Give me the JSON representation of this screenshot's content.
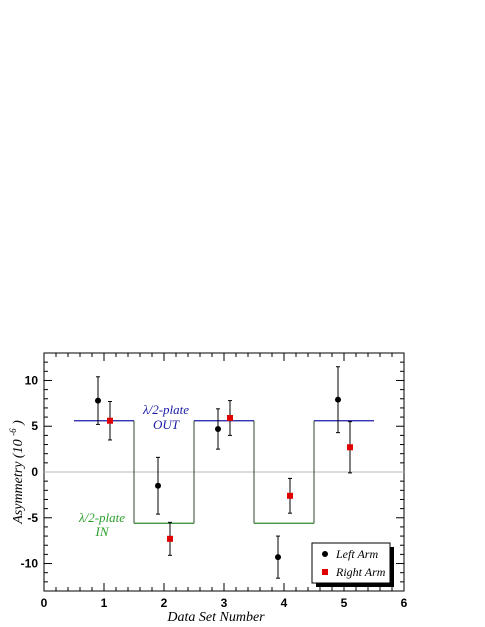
{
  "chart_data": {
    "type": "scatter",
    "xlabel": "Data Set Number",
    "ylabel": "Asymmetry",
    "ylabel_unit_base": "(10",
    "ylabel_unit_exp": "-6",
    "ylabel_unit_close": ")",
    "xlim": [
      0,
      6
    ],
    "ylim": [
      -13,
      13
    ],
    "x_ticks": [
      "0",
      "1",
      "2",
      "3",
      "4",
      "5",
      "6"
    ],
    "y_ticks": [
      "10",
      "5",
      "0",
      "-5",
      "-10"
    ],
    "grid": false,
    "zero_line": true,
    "legend_position": "bottom-right",
    "series": [
      {
        "name": "Left Arm",
        "marker": "circle",
        "color": "#000000",
        "points": [
          {
            "x": 0.9,
            "y": 7.8,
            "yerr": 2.6
          },
          {
            "x": 1.9,
            "y": -1.5,
            "yerr": 3.1
          },
          {
            "x": 2.9,
            "y": 4.7,
            "yerr": 2.2
          },
          {
            "x": 3.9,
            "y": -9.3,
            "yerr": 2.3
          },
          {
            "x": 4.9,
            "y": 7.9,
            "yerr": 3.6
          }
        ]
      },
      {
        "name": "Right Arm",
        "marker": "square",
        "color": "#e00000",
        "points": [
          {
            "x": 1.1,
            "y": 5.6,
            "yerr": 2.1
          },
          {
            "x": 2.1,
            "y": -7.3,
            "yerr": 1.8
          },
          {
            "x": 3.1,
            "y": 5.9,
            "yerr": 1.9
          },
          {
            "x": 4.1,
            "y": -2.6,
            "yerr": 1.9
          },
          {
            "x": 5.1,
            "y": 2.7,
            "yerr": 2.8
          }
        ]
      }
    ],
    "step_function": {
      "high": 5.6,
      "low": -5.6,
      "x_edges": [
        0.5,
        1.5,
        2.5,
        3.5,
        4.5,
        5.5
      ],
      "levels": [
        "high",
        "low",
        "high",
        "low",
        "high"
      ],
      "high_color": "#1a1aa6",
      "low_color": "#2e8b2e"
    },
    "annotations": {
      "out_line1": "λ/2-plate",
      "out_line2": "OUT",
      "in_line1": "λ/2-plate",
      "in_line2": "IN",
      "out_color": "#1a1aa6",
      "in_color": "#2ca02c"
    }
  }
}
